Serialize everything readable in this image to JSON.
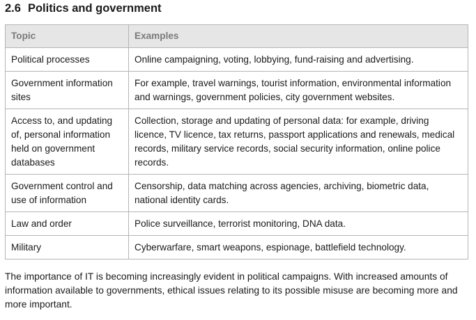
{
  "section": {
    "number": "2.6",
    "title": "Politics and government"
  },
  "table": {
    "headers": [
      "Topic",
      "Examples"
    ],
    "rows": [
      [
        "Political processes",
        "Online campaigning, voting, lobbying, fund-raising and advertising."
      ],
      [
        "Government information sites",
        "For example, travel warnings, tourist information, environmental information and warnings, government policies, city government websites."
      ],
      [
        "Access to, and updating of, personal information held on government databases",
        "Collection, storage and updating of personal data: for example, driving licence, TV licence, tax returns, passport applications and renewals, medical records, military service records, social security information, online police records."
      ],
      [
        "Government control and use of information",
        "Censorship, data matching across agencies, archiving, biometric data, national identity cards."
      ],
      [
        "Law and order",
        "Police surveillance, terrorist monitoring, DNA data."
      ],
      [
        "Military",
        "Cyberwarfare, smart weapons, espionage, battlefield technology."
      ]
    ]
  },
  "paragraph": "The importance of IT is becoming increasingly evident in political campaigns. With increased amounts of information available to governments, ethical issues relating to its possible misuse are becoming more and more important."
}
